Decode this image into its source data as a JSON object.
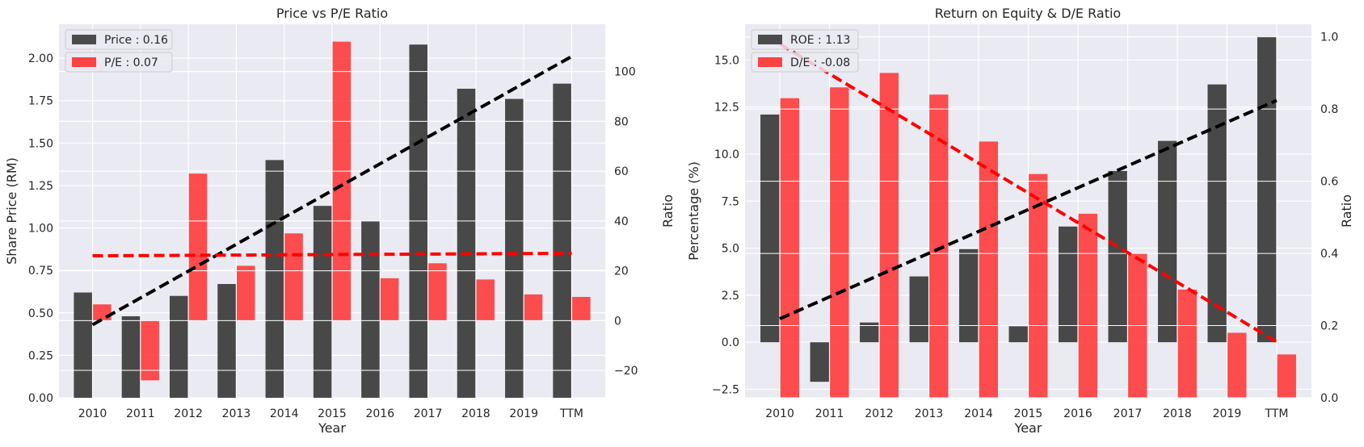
{
  "colors": {
    "background": "#eaeaf2",
    "grid": "#ffffff",
    "bar_dark": "#3a3a3a",
    "bar_red": "#ff3030",
    "trend_dark": "#000000",
    "trend_red": "#ff0000",
    "text": "#262626"
  },
  "chart_data": [
    {
      "type": "bar",
      "title": "Price vs P/E Ratio",
      "xlabel": "Year",
      "ylabel": "Share Price (RM)",
      "y2label": "Ratio",
      "categories": [
        "2010",
        "2011",
        "2012",
        "2013",
        "2014",
        "2015",
        "2016",
        "2017",
        "2018",
        "2019",
        "TTM"
      ],
      "ylim": [
        0,
        2.2
      ],
      "y2lim": [
        -31,
        119
      ],
      "yticks": [
        "0.00",
        "0.25",
        "0.50",
        "0.75",
        "1.00",
        "1.25",
        "1.50",
        "1.75",
        "2.00"
      ],
      "y2ticks": [
        "−20",
        "0",
        "20",
        "40",
        "60",
        "80",
        "100"
      ],
      "grid": true,
      "legend_position": "top-left",
      "series": [
        {
          "name": "Price : 0.16",
          "axis": "left",
          "color": "#3a3a3a",
          "values": [
            0.62,
            0.48,
            0.6,
            0.67,
            1.4,
            1.13,
            1.04,
            2.08,
            1.82,
            1.76,
            1.85
          ]
        },
        {
          "name": "P/E : 0.07",
          "axis": "right",
          "color": "#ff3030",
          "values": [
            6.5,
            -24,
            59,
            22,
            35,
            112,
            17,
            23,
            16.5,
            10.5,
            9.5
          ]
        }
      ],
      "trendlines": [
        {
          "series": "Price : 0.16",
          "axis": "left",
          "color": "#000000",
          "start": 0.43,
          "end": 2.01
        },
        {
          "series": "P/E : 0.07",
          "axis": "right",
          "color": "#ff0000",
          "start": 26,
          "end": 27
        }
      ]
    },
    {
      "type": "bar",
      "title": "Return on Equity & D/E Ratio",
      "xlabel": "Year",
      "ylabel": "Percentage (%)",
      "y2label": "Ratio",
      "categories": [
        "2010",
        "2011",
        "2012",
        "2013",
        "2014",
        "2015",
        "2016",
        "2017",
        "2018",
        "2019",
        "TTM"
      ],
      "ylim": [
        -2.95,
        16.9
      ],
      "y2lim": [
        0,
        1.035
      ],
      "yticks": [
        "−2.5",
        "0.0",
        "2.5",
        "5.0",
        "7.5",
        "10.0",
        "12.5",
        "15.0"
      ],
      "y2ticks": [
        "0.0",
        "0.2",
        "0.4",
        "0.6",
        "0.8",
        "1.0"
      ],
      "grid": true,
      "legend_position": "top-left",
      "series": [
        {
          "name": "ROE : 1.13",
          "axis": "left",
          "color": "#3a3a3a",
          "values": [
            12.1,
            -2.1,
            1.05,
            3.5,
            4.95,
            0.85,
            6.15,
            9.1,
            10.7,
            13.7,
            16.25
          ]
        },
        {
          "name": "D/E : -0.08",
          "axis": "right",
          "color": "#ff3030",
          "values": [
            0.83,
            0.86,
            0.9,
            0.84,
            0.71,
            0.62,
            0.51,
            0.4,
            0.3,
            0.18,
            0.12
          ]
        }
      ],
      "trendlines": [
        {
          "series": "ROE : 1.13",
          "axis": "left",
          "color": "#000000",
          "start": 1.25,
          "end": 12.85
        },
        {
          "series": "D/E : -0.08",
          "axis": "right",
          "color": "#ff0000",
          "start": 0.98,
          "end": 0.155
        }
      ]
    }
  ]
}
